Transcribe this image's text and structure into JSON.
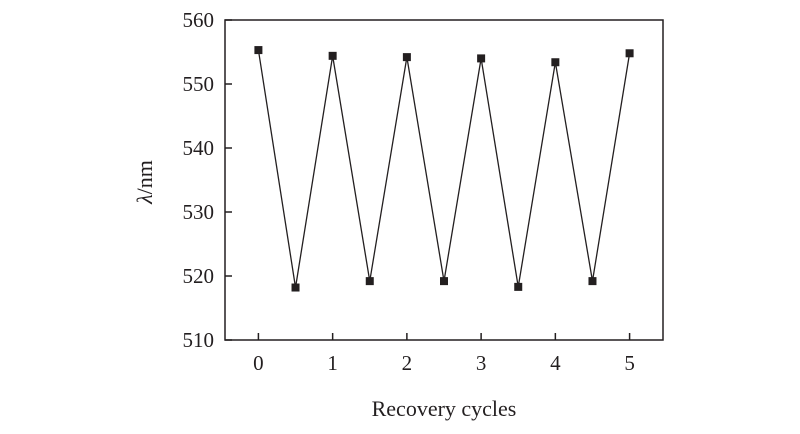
{
  "chart_data": {
    "type": "line",
    "title": "",
    "xlabel": "Recovery cycles",
    "ylabel_symbol": "λ",
    "ylabel_unit": "/nm",
    "x_ticks": [
      "0",
      "1",
      "2",
      "3",
      "4",
      "5"
    ],
    "y_ticks": [
      "510",
      "520",
      "530",
      "540",
      "550",
      "560"
    ],
    "xlim": [
      -0.45,
      5.45
    ],
    "ylim": [
      510,
      560
    ],
    "grid": false,
    "legend": "none",
    "series": [
      {
        "x": [
          0,
          0.5,
          1,
          1.5,
          2,
          2.5,
          3,
          3.5,
          4,
          4.5,
          5
        ],
        "y": [
          555.3,
          518.2,
          554.4,
          519.2,
          554.2,
          519.2,
          554.0,
          518.3,
          553.4,
          519.2,
          554.8
        ],
        "marker": "square",
        "color": "#231f20"
      }
    ]
  }
}
